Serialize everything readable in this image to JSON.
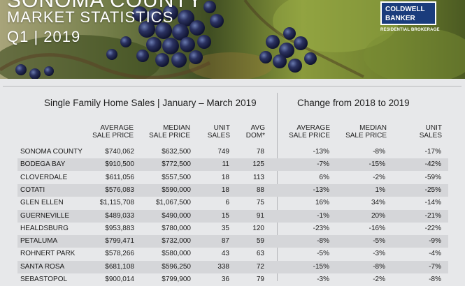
{
  "header": {
    "title_line1": "SONOMA COUNTY",
    "title_line2": "MARKET STATISTICS",
    "title_line3": "Q1 | 2019"
  },
  "logo": {
    "line1": "COLDWELL",
    "line2": "BANKER",
    "tagline": "RESIDENTIAL BROKERAGE",
    "brand_color": "#1a3c7c"
  },
  "section_left_title": "Single Family Home Sales | January – March 2019",
  "section_right_title": "Change from  2018 to 2019",
  "columns": {
    "avg_price_1": "AVERAGE",
    "avg_price_2": "SALE PRICE",
    "median_price_1": "MEDIAN",
    "median_price_2": "SALE PRICE",
    "units_1": "UNIT",
    "units_2": "SALES",
    "dom_1": "AVG",
    "dom_2": "DOM*",
    "chg_avg_1": "AVERAGE",
    "chg_avg_2": "SALE PRICE",
    "chg_median_1": "MEDIAN",
    "chg_median_2": "SALE PRICE",
    "chg_units_1": "UNIT",
    "chg_units_2": "SALES"
  },
  "rows": [
    {
      "area": "SONOMA COUNTY",
      "avg": "$740,062",
      "median": "$632,500",
      "units": "749",
      "dom": "78",
      "chg_avg": "-13%",
      "chg_median": "-8%",
      "chg_units": "-17%"
    },
    {
      "area": "BODEGA BAY",
      "avg": "$910,500",
      "median": "$772,500",
      "units": "11",
      "dom": "125",
      "chg_avg": "-7%",
      "chg_median": "-15%",
      "chg_units": "-42%"
    },
    {
      "area": "CLOVERDALE",
      "avg": "$611,056",
      "median": "$557,500",
      "units": "18",
      "dom": "113",
      "chg_avg": "6%",
      "chg_median": "-2%",
      "chg_units": "-59%"
    },
    {
      "area": "COTATI",
      "avg": "$576,083",
      "median": "$590,000",
      "units": "18",
      "dom": "88",
      "chg_avg": "-13%",
      "chg_median": "1%",
      "chg_units": "-25%"
    },
    {
      "area": "GLEN ELLEN",
      "avg": "$1,115,708",
      "median": "$1,067,500",
      "units": "6",
      "dom": "75",
      "chg_avg": "16%",
      "chg_median": "34%",
      "chg_units": "-14%"
    },
    {
      "area": "GUERNEVILLE",
      "avg": "$489,033",
      "median": "$490,000",
      "units": "15",
      "dom": "91",
      "chg_avg": "-1%",
      "chg_median": "20%",
      "chg_units": "-21%"
    },
    {
      "area": "HEALDSBURG",
      "avg": "$953,883",
      "median": "$780,000",
      "units": "35",
      "dom": "120",
      "chg_avg": "-23%",
      "chg_median": "-16%",
      "chg_units": "-22%"
    },
    {
      "area": "PETALUMA",
      "avg": "$799,471",
      "median": "$732,000",
      "units": "87",
      "dom": "59",
      "chg_avg": "-8%",
      "chg_median": "-5%",
      "chg_units": "-9%"
    },
    {
      "area": "ROHNERT PARK",
      "avg": "$578,266",
      "median": "$580,000",
      "units": "43",
      "dom": "63",
      "chg_avg": "-5%",
      "chg_median": "-3%",
      "chg_units": "-4%"
    },
    {
      "area": "SANTA ROSA",
      "avg": "$681,108",
      "median": "$596,250",
      "units": "338",
      "dom": "72",
      "chg_avg": "-15%",
      "chg_median": "-8%",
      "chg_units": "-7%"
    },
    {
      "area": "SEBASTOPOL",
      "avg": "$900,014",
      "median": "$799,900",
      "units": "36",
      "dom": "79",
      "chg_avg": "-3%",
      "chg_median": "-2%",
      "chg_units": "-8%"
    }
  ]
}
